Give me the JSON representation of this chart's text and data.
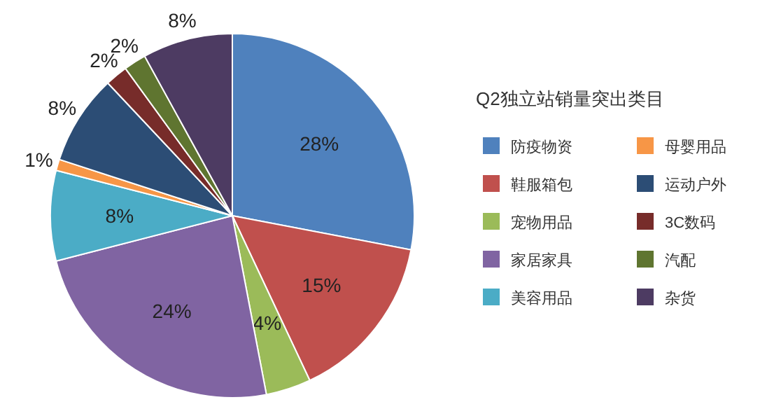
{
  "chart_data": {
    "type": "pie",
    "title": "Q2独立站销量突出类目",
    "categories": [
      "防疫物资",
      "鞋服箱包",
      "宠物用品",
      "家居家具",
      "美容用品",
      "母婴用品",
      "运动户外",
      "3C数码",
      "汽配",
      "杂货"
    ],
    "values": [
      28,
      15,
      4,
      24,
      8,
      1,
      8,
      2,
      2,
      8
    ],
    "colors": [
      "#4f81bd",
      "#c0504d",
      "#9bbb59",
      "#8064a2",
      "#4bacc6",
      "#f79646",
      "#2c4d75",
      "#772c2a",
      "#5f7530",
      "#4d3b62"
    ],
    "value_labels": [
      "28%",
      "15%",
      "4%",
      "24%",
      "8%",
      "1%",
      "8%",
      "2%",
      "2%",
      "8%"
    ],
    "legend": "right"
  }
}
